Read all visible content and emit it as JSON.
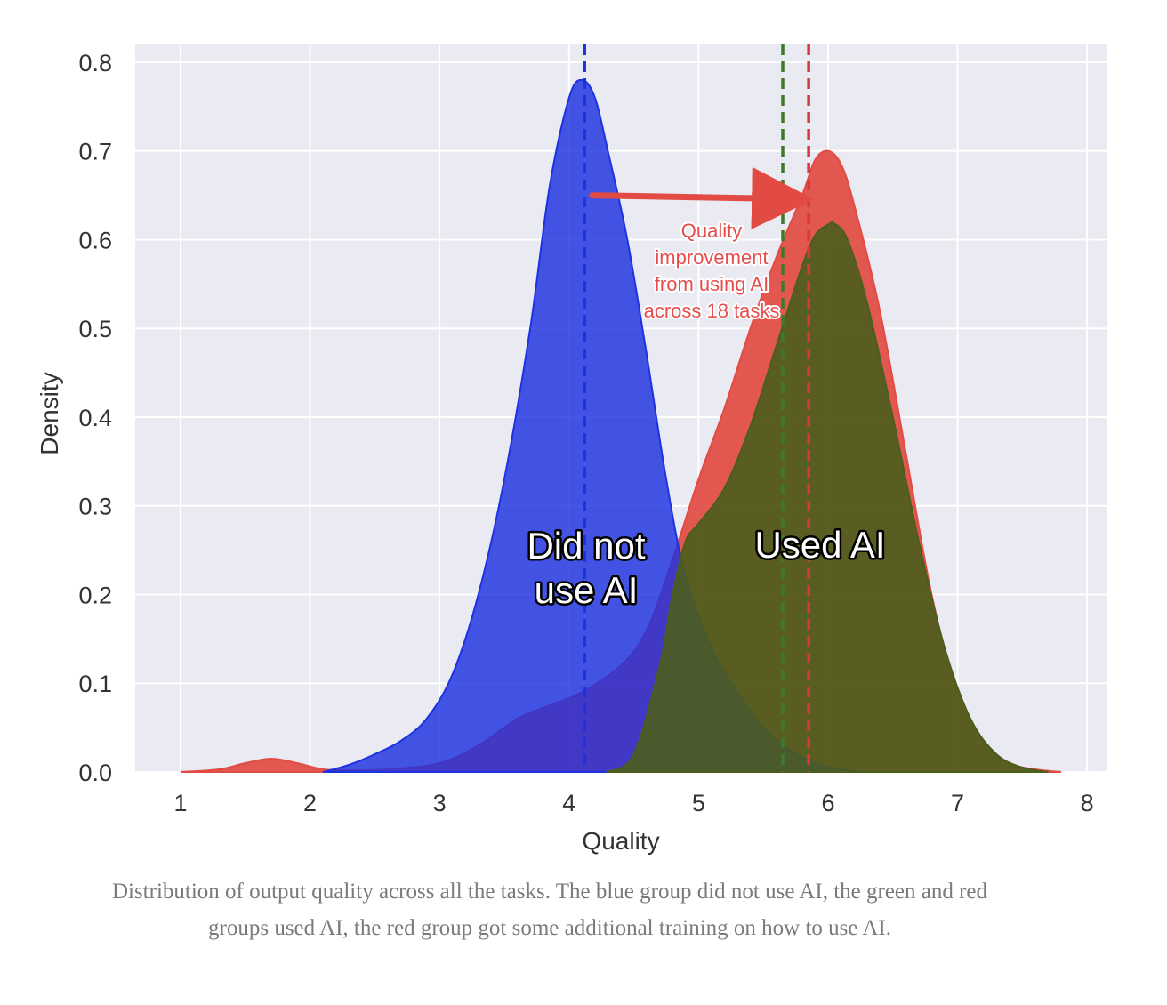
{
  "chart_data": {
    "type": "area",
    "xlabel": "Quality",
    "ylabel": "Density",
    "xlim": [
      0.65,
      8.15
    ],
    "ylim": [
      0,
      0.82
    ],
    "xticks": [
      1,
      2,
      3,
      4,
      5,
      6,
      7,
      8
    ],
    "yticks": [
      0.0,
      0.1,
      0.2,
      0.3,
      0.4,
      0.5,
      0.6,
      0.7,
      0.8
    ],
    "series": [
      {
        "color": "#e14b43",
        "mean": 5.85,
        "x": [
          1.0,
          1.3,
          1.5,
          1.7,
          1.9,
          2.1,
          2.3,
          2.6,
          3.0,
          3.3,
          3.6,
          3.85,
          4.1,
          4.4,
          4.6,
          4.8,
          5.0,
          5.2,
          5.4,
          5.6,
          5.8,
          5.9,
          6.0,
          6.1,
          6.2,
          6.4,
          6.6,
          6.8,
          7.0,
          7.2,
          7.4,
          7.6,
          7.8
        ],
        "values": [
          0.0,
          0.003,
          0.01,
          0.015,
          0.01,
          0.003,
          0.002,
          0.003,
          0.01,
          0.03,
          0.06,
          0.075,
          0.09,
          0.12,
          0.16,
          0.24,
          0.33,
          0.41,
          0.5,
          0.58,
          0.65,
          0.69,
          0.7,
          0.685,
          0.64,
          0.52,
          0.36,
          0.2,
          0.09,
          0.035,
          0.01,
          0.003,
          0.0
        ]
      },
      {
        "color": "#1d32e0",
        "mean": 4.12,
        "x": [
          2.1,
          2.3,
          2.5,
          2.7,
          2.9,
          3.1,
          3.3,
          3.5,
          3.7,
          3.85,
          4.0,
          4.1,
          4.2,
          4.3,
          4.45,
          4.6,
          4.75,
          4.9,
          5.1,
          5.3,
          5.5,
          5.7,
          5.9,
          6.1,
          6.25
        ],
        "values": [
          0.0,
          0.008,
          0.02,
          0.035,
          0.06,
          0.11,
          0.2,
          0.33,
          0.5,
          0.66,
          0.76,
          0.78,
          0.76,
          0.7,
          0.6,
          0.47,
          0.33,
          0.22,
          0.14,
          0.09,
          0.05,
          0.025,
          0.01,
          0.003,
          0.0
        ]
      },
      {
        "color": "#4b5e1c",
        "mean": 5.65,
        "x": [
          4.3,
          4.5,
          4.7,
          4.8,
          4.9,
          5.0,
          5.2,
          5.4,
          5.6,
          5.8,
          5.9,
          6.0,
          6.05,
          6.15,
          6.3,
          6.5,
          6.7,
          6.9,
          7.1,
          7.3,
          7.5,
          7.7
        ],
        "values": [
          0.0,
          0.02,
          0.12,
          0.2,
          0.26,
          0.28,
          0.32,
          0.39,
          0.48,
          0.57,
          0.605,
          0.617,
          0.618,
          0.6,
          0.53,
          0.4,
          0.26,
          0.14,
          0.06,
          0.02,
          0.005,
          0.0
        ]
      }
    ],
    "annotations": {
      "arrow": {
        "from": 4.18,
        "to": 5.85,
        "y": 0.65,
        "color": "#e14b43"
      },
      "improvement_text": [
        "Quality",
        "improvement",
        "from using AI",
        "across 18 tasks"
      ],
      "did_not_use_label": [
        "Did not",
        "use AI"
      ],
      "used_label": "Used AI"
    },
    "grid": true
  },
  "caption": "Distribution of output quality across all the tasks. The blue group did not use AI, the green and red groups used AI, the red group got some additional training on how to use AI.",
  "colors": {
    "plot_background": "#eaeaf2",
    "grid": "#ffffff",
    "red": "#e14b43",
    "blue": "#1d32e0",
    "green": "#4b5e1c",
    "red_mean_line": "#d9363e",
    "blue_mean_line": "#1d32e0",
    "green_mean_line": "#3d7a2a"
  }
}
